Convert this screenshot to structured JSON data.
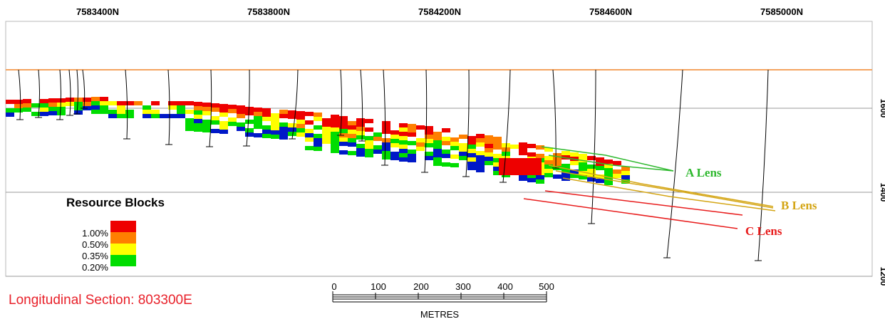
{
  "northing_labels": [
    "7583400N",
    "7583800N",
    "7584200N",
    "7584600N",
    "7585000N"
  ],
  "elevation_labels": [
    "1600",
    "1400",
    "1200"
  ],
  "legend": {
    "title": "Resource Blocks",
    "grades": [
      "1.00%",
      "0.50%",
      "0.35%",
      "0.20%"
    ],
    "colors": [
      "#ee0000",
      "#ff7f00",
      "#ffff00",
      "#00dd00"
    ]
  },
  "lenses": [
    {
      "label": "A Lens",
      "color": "#2db82d"
    },
    {
      "label": "B Lens",
      "color": "#d4a514"
    },
    {
      "label": "C Lens",
      "color": "#e81c1c"
    }
  ],
  "section_title": "Longitudinal Section: 803300E",
  "scale_bar": {
    "ticks": [
      "0",
      "100",
      "200",
      "300",
      "400",
      "500"
    ],
    "unit": "METRES"
  },
  "colors": {
    "topography": "#f4a460",
    "title_red": "#e8212a",
    "low_grade_blue": "#0018c8",
    "drillhole": "#000000"
  }
}
